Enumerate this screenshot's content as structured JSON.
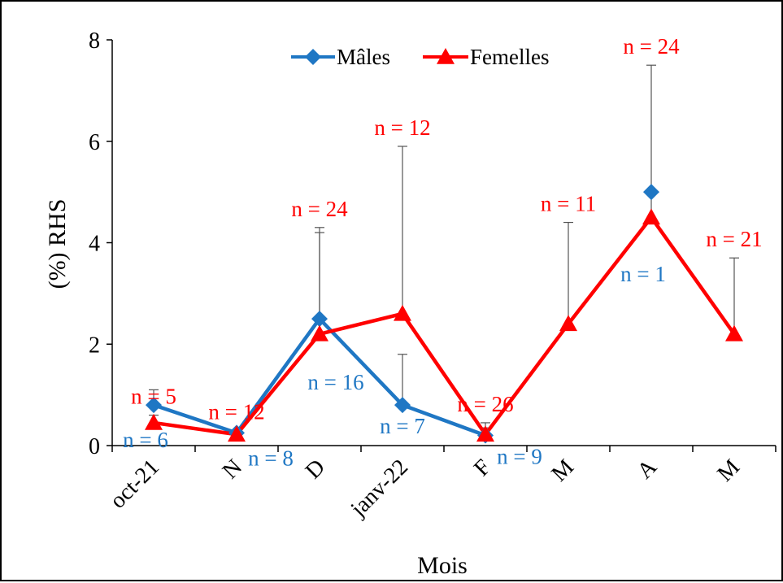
{
  "chart_data": {
    "type": "line",
    "title": "",
    "xlabel": "Mois",
    "ylabel": "(%) RHS",
    "categories": [
      "oct-21",
      "N",
      "D",
      "janv-22",
      "F",
      "M",
      "A",
      "M"
    ],
    "ylim": [
      0,
      8
    ],
    "yticks": [
      0,
      2,
      4,
      6,
      8
    ],
    "grid": false,
    "legend_position": "top",
    "series": [
      {
        "name": "Mâles",
        "color": "#1f77c4",
        "marker": "diamond",
        "values": [
          0.8,
          0.25,
          2.5,
          0.8,
          0.2,
          null,
          5.0,
          null
        ],
        "error_upper": [
          1.1,
          0.3,
          4.2,
          1.8,
          0.35,
          null,
          null,
          null
        ],
        "n_labels": [
          "n = 6",
          "n = 8",
          "n = 16",
          "n = 7",
          "n = 9",
          null,
          "n = 1",
          null
        ]
      },
      {
        "name": "Femelles",
        "color": "#ff0000",
        "marker": "triangle",
        "values": [
          0.45,
          0.22,
          2.2,
          2.6,
          0.22,
          2.4,
          4.5,
          2.2
        ],
        "error_upper": [
          0.6,
          0.3,
          4.3,
          5.9,
          0.45,
          4.4,
          7.5,
          3.7
        ],
        "n_labels": [
          "n = 5",
          "n = 12",
          "n = 24",
          "n = 12",
          "n = 26",
          "n = 11",
          "n = 24",
          "n = 21"
        ]
      }
    ]
  }
}
